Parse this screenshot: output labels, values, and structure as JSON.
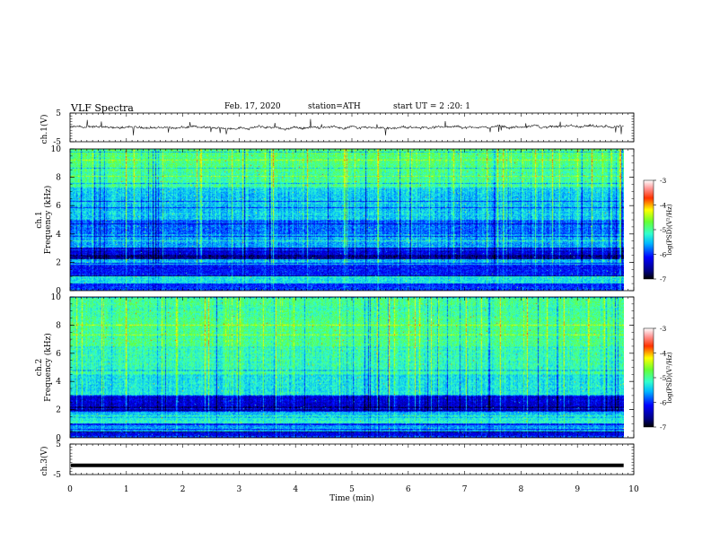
{
  "header": {
    "title": "VLF Spectra",
    "date": "Feb. 17, 2020",
    "station": "station=ATH",
    "start": "start UT =  2 :20: 1"
  },
  "chart_data": [
    {
      "type": "line",
      "name": "ch1-waveform",
      "ylabel": "ch.1(V)",
      "ylim": [
        -5,
        5
      ],
      "yticks": [
        "5",
        "-5"
      ],
      "xlim": [
        0,
        10
      ],
      "x_end": 9.82,
      "baseline": 0,
      "note_amplitude_v": 0.6
    },
    {
      "type": "heatmap",
      "name": "ch1-spectrogram",
      "ylabel_top": "ch.1",
      "ylabel": "Frequency (kHz)",
      "ylim": [
        0,
        10
      ],
      "yticks": [
        "0",
        "2",
        "4",
        "6",
        "8",
        "10"
      ],
      "xlim": [
        0,
        10
      ],
      "x_end": 9.82,
      "colorbar": {
        "label": "log(PSD)(V²/Hz)",
        "range": [
          -7,
          -3
        ],
        "ticks": [
          "-3",
          "-4",
          "-5",
          "-6",
          "-7"
        ]
      }
    },
    {
      "type": "heatmap",
      "name": "ch2-spectrogram",
      "ylabel_top": "ch.2",
      "ylabel": "Frequency (kHz)",
      "ylim": [
        0,
        10
      ],
      "yticks": [
        "0",
        "2",
        "4",
        "6",
        "8",
        "10"
      ],
      "xlim": [
        0,
        10
      ],
      "x_end": 9.82,
      "colorbar": {
        "label": "log(PSD)(V²/Hz)",
        "range": [
          -7,
          -3
        ],
        "ticks": [
          "-3",
          "-4",
          "-5",
          "-6",
          "-7"
        ]
      }
    },
    {
      "type": "line",
      "name": "ch3-waveform",
      "ylabel": "ch.3(V)",
      "ylim": [
        -5,
        5
      ],
      "yticks": [
        "5",
        "-5"
      ],
      "xlim": [
        0,
        10
      ],
      "x_end": 9.82,
      "baseline": -2
    }
  ],
  "x_axis": {
    "label": "Time (min)",
    "ticks": [
      "0",
      "1",
      "2",
      "3",
      "4",
      "5",
      "6",
      "7",
      "8",
      "9",
      "10"
    ]
  },
  "colors": {
    "waveform": "#111111",
    "axis": "#000000"
  }
}
